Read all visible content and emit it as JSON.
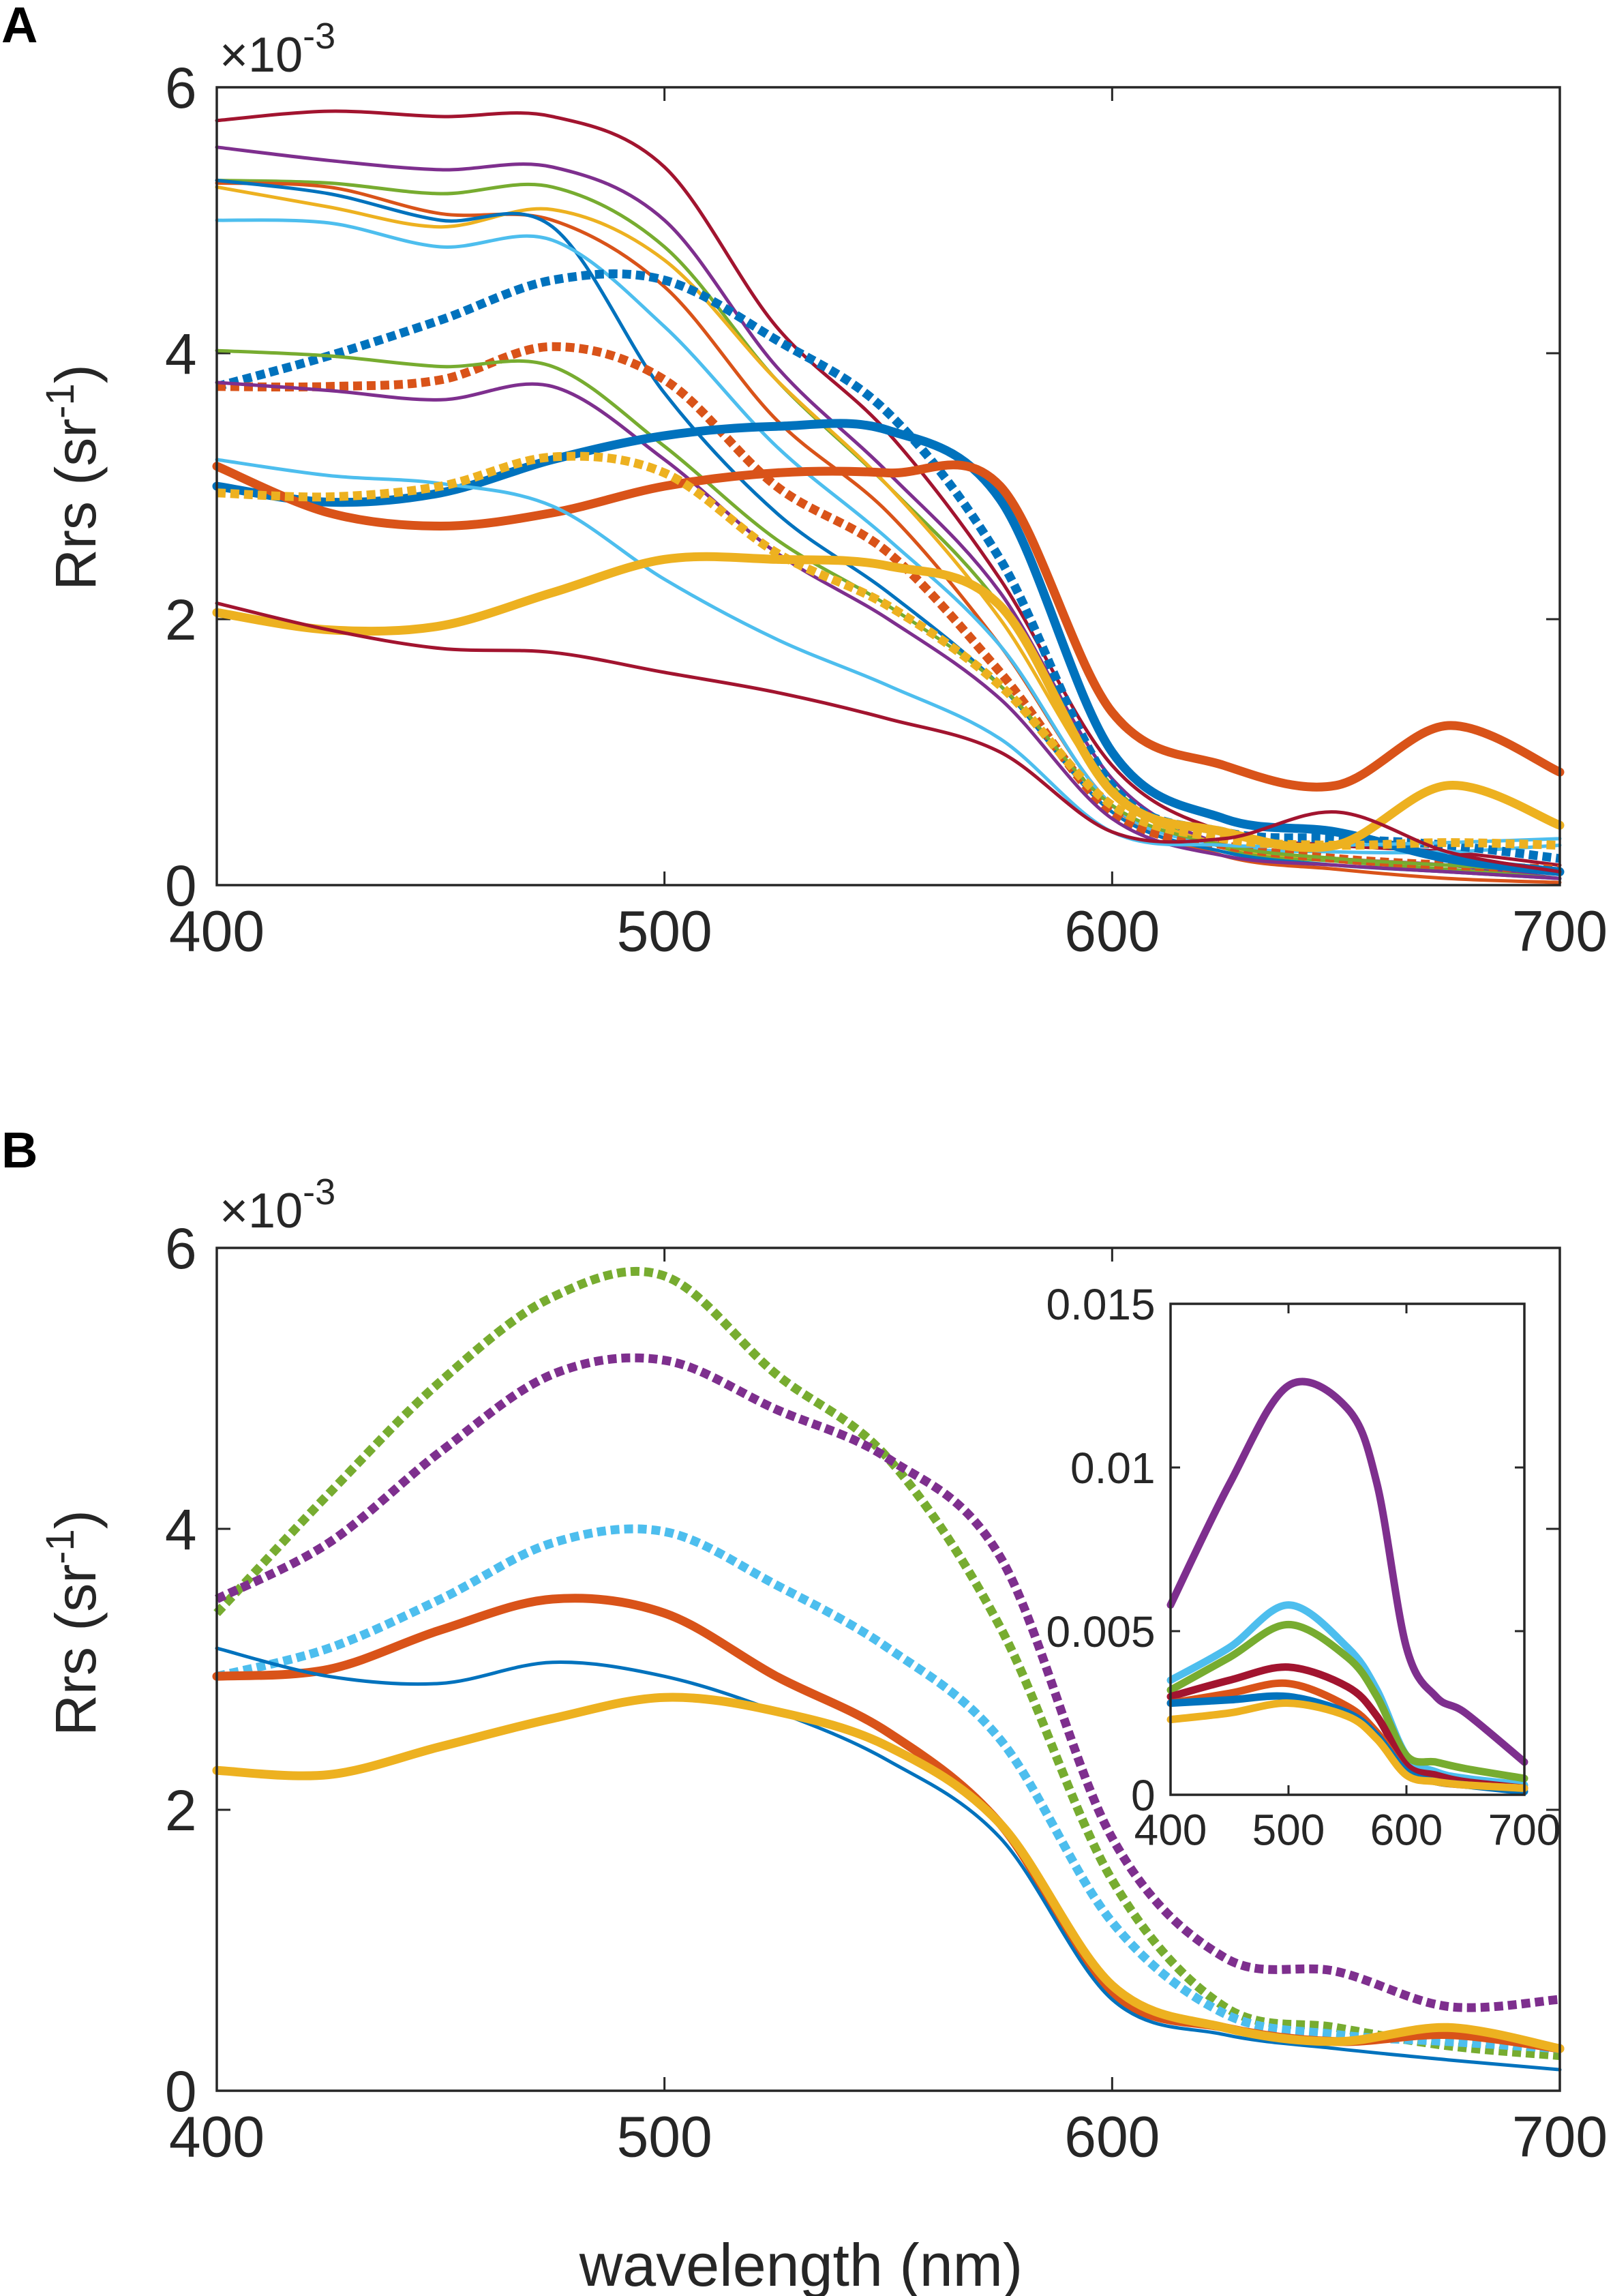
{
  "chart_data": [
    {
      "panel": "A",
      "type": "line",
      "xlabel": "",
      "ylabel": "Rrs (sr⁻¹)",
      "ylabel_main": "Rrs (sr",
      "ylabel_sup": "-1",
      "ylabel_close": ")",
      "exponent_prefix": "×10",
      "exponent_sup": "-3",
      "xlim": [
        400,
        700
      ],
      "ylim": [
        0,
        6
      ],
      "xticks": [
        "400",
        "500",
        "600",
        "700"
      ],
      "yticks": [
        "0",
        "2",
        "4",
        "6"
      ],
      "x": [
        400,
        425,
        450,
        475,
        500,
        525,
        550,
        575,
        600,
        625,
        650,
        675,
        700
      ],
      "series": [
        {
          "name": "a1-darkred-thin",
          "color": "#A2142F",
          "style": "solid",
          "width": "thin",
          "values": [
            5.75,
            5.82,
            5.78,
            5.78,
            5.4,
            4.2,
            3.4,
            2.3,
            0.9,
            0.4,
            0.3,
            0.25,
            0.15
          ]
        },
        {
          "name": "a2-purple-thin",
          "color": "#7E2F8E",
          "style": "solid",
          "width": "thin",
          "values": [
            5.55,
            5.45,
            5.38,
            5.4,
            5.0,
            3.9,
            3.1,
            2.2,
            0.8,
            0.3,
            0.2,
            0.15,
            0.05
          ]
        },
        {
          "name": "a3-green-thin",
          "color": "#77AC30",
          "style": "solid",
          "width": "thin",
          "values": [
            5.3,
            5.28,
            5.2,
            5.25,
            4.8,
            3.8,
            3.0,
            2.1,
            0.75,
            0.28,
            0.18,
            0.12,
            0.05
          ]
        },
        {
          "name": "a4-orange-thin",
          "color": "#D95319",
          "style": "solid",
          "width": "thin",
          "values": [
            5.28,
            5.25,
            5.05,
            5.0,
            4.5,
            3.5,
            2.8,
            1.8,
            0.6,
            0.22,
            0.12,
            0.05,
            0.02
          ]
        },
        {
          "name": "a5-yellow-thin",
          "color": "#EDB120",
          "style": "solid",
          "width": "thin",
          "values": [
            5.25,
            5.1,
            4.95,
            5.08,
            4.7,
            3.8,
            3.0,
            2.0,
            0.7,
            0.3,
            0.2,
            0.15,
            0.1
          ]
        },
        {
          "name": "a6-blue-thin",
          "color": "#0072BD",
          "style": "solid",
          "width": "thin",
          "values": [
            5.3,
            5.2,
            5.0,
            4.95,
            3.7,
            2.8,
            2.2,
            1.5,
            0.55,
            0.25,
            0.15,
            0.1,
            0.05
          ]
        },
        {
          "name": "a7-lightblue-thin",
          "color": "#4DBEEE",
          "style": "solid",
          "width": "thin",
          "values": [
            5.0,
            4.98,
            4.8,
            4.85,
            4.2,
            3.3,
            2.6,
            1.8,
            0.6,
            0.3,
            0.25,
            0.25,
            0.3
          ]
        },
        {
          "name": "a8-blue-dotted",
          "color": "#0072BD",
          "style": "dotted",
          "width": "thick",
          "values": [
            3.75,
            3.98,
            4.25,
            4.55,
            4.55,
            4.1,
            3.55,
            2.45,
            0.75,
            0.4,
            0.35,
            0.3,
            0.2
          ]
        },
        {
          "name": "a9-orange-dotted",
          "color": "#D95319",
          "style": "dotted",
          "width": "thick",
          "values": [
            3.75,
            3.75,
            3.8,
            4.05,
            3.8,
            3.0,
            2.5,
            1.6,
            0.55,
            0.3,
            0.2,
            0.15,
            0.12
          ]
        },
        {
          "name": "a10-green-thin-low",
          "color": "#77AC30",
          "style": "solid",
          "width": "thin",
          "values": [
            4.02,
            3.98,
            3.9,
            3.9,
            3.3,
            2.6,
            2.1,
            1.5,
            0.6,
            0.3,
            0.2,
            0.15,
            0.1
          ]
        },
        {
          "name": "a11-purple-thin-low",
          "color": "#7E2F8E",
          "style": "solid",
          "width": "thin",
          "values": [
            3.78,
            3.72,
            3.65,
            3.75,
            3.2,
            2.5,
            2.0,
            1.4,
            0.5,
            0.22,
            0.15,
            0.1,
            0.05
          ]
        },
        {
          "name": "a12-blue-thick",
          "color": "#0072BD",
          "style": "solid",
          "width": "thick",
          "values": [
            3.0,
            2.88,
            2.95,
            3.2,
            3.38,
            3.45,
            3.42,
            2.9,
            1.0,
            0.5,
            0.4,
            0.2,
            0.1
          ]
        },
        {
          "name": "a13-orange-thick",
          "color": "#D95319",
          "style": "solid",
          "width": "thick",
          "values": [
            3.15,
            2.8,
            2.7,
            2.8,
            3.0,
            3.1,
            3.1,
            3.0,
            1.3,
            0.9,
            0.75,
            1.2,
            0.85
          ]
        },
        {
          "name": "a14-lightblue-thin-low",
          "color": "#4DBEEE",
          "style": "solid",
          "width": "thin",
          "values": [
            3.2,
            3.08,
            3.02,
            2.85,
            2.3,
            1.85,
            1.5,
            1.1,
            0.4,
            0.3,
            0.3,
            0.32,
            0.35
          ]
        },
        {
          "name": "a15-yellow-dotted",
          "color": "#EDB120",
          "style": "dotted",
          "width": "thick",
          "values": [
            2.95,
            2.92,
            3.0,
            3.22,
            3.1,
            2.5,
            2.1,
            1.5,
            0.6,
            0.35,
            0.3,
            0.32,
            0.3
          ]
        },
        {
          "name": "a16-yellow-thick",
          "color": "#EDB120",
          "style": "solid",
          "width": "thick",
          "values": [
            2.05,
            1.92,
            1.95,
            2.2,
            2.45,
            2.45,
            2.4,
            2.1,
            0.7,
            0.4,
            0.3,
            0.75,
            0.45
          ]
        },
        {
          "name": "a17-darkred-thin-low",
          "color": "#A2142F",
          "style": "solid",
          "width": "thin",
          "values": [
            2.12,
            1.92,
            1.78,
            1.75,
            1.6,
            1.45,
            1.25,
            1.0,
            0.4,
            0.35,
            0.55,
            0.25,
            0.1
          ]
        }
      ]
    },
    {
      "panel": "B",
      "type": "line",
      "xlabel": "wavelength (nm)",
      "ylabel": "Rrs (sr⁻¹)",
      "ylabel_main": "Rrs (sr",
      "ylabel_sup": "-1",
      "ylabel_close": ")",
      "exponent_prefix": "×10",
      "exponent_sup": "-3",
      "xlim": [
        400,
        700
      ],
      "ylim": [
        0,
        6
      ],
      "xticks": [
        "400",
        "500",
        "600",
        "700"
      ],
      "yticks": [
        "0",
        "2",
        "4",
        "6"
      ],
      "x": [
        400,
        425,
        450,
        475,
        500,
        525,
        550,
        575,
        600,
        625,
        650,
        675,
        700
      ],
      "series": [
        {
          "name": "b1-green-dotted",
          "color": "#77AC30",
          "style": "dotted",
          "width": "thick",
          "values": [
            3.4,
            4.25,
            5.05,
            5.65,
            5.8,
            5.1,
            4.5,
            3.3,
            1.5,
            0.6,
            0.45,
            0.32,
            0.25
          ]
        },
        {
          "name": "b2-purple-dotted",
          "color": "#7E2F8E",
          "style": "dotted",
          "width": "thick",
          "values": [
            3.5,
            3.9,
            4.55,
            5.1,
            5.2,
            4.85,
            4.5,
            3.8,
            1.8,
            0.95,
            0.85,
            0.6,
            0.65
          ]
        },
        {
          "name": "b3-lightblue-dotted",
          "color": "#4DBEEE",
          "style": "dotted",
          "width": "thick",
          "values": [
            2.95,
            3.15,
            3.5,
            3.9,
            3.98,
            3.6,
            3.15,
            2.5,
            1.2,
            0.55,
            0.4,
            0.35,
            0.3
          ]
        },
        {
          "name": "b4-orange-thick",
          "color": "#D95319",
          "style": "solid",
          "width": "thick",
          "values": [
            2.95,
            3.0,
            3.28,
            3.5,
            3.4,
            2.95,
            2.55,
            1.9,
            0.7,
            0.45,
            0.35,
            0.4,
            0.3
          ]
        },
        {
          "name": "b5-blue-thin",
          "color": "#0072BD",
          "style": "solid",
          "width": "thin",
          "values": [
            3.15,
            2.95,
            2.9,
            3.05,
            2.95,
            2.7,
            2.35,
            1.8,
            0.65,
            0.4,
            0.3,
            0.22,
            0.15
          ]
        },
        {
          "name": "b6-yellow-thick",
          "color": "#EDB120",
          "style": "solid",
          "width": "thick",
          "values": [
            2.28,
            2.25,
            2.45,
            2.65,
            2.8,
            2.7,
            2.45,
            1.9,
            0.75,
            0.45,
            0.35,
            0.45,
            0.3
          ]
        }
      ],
      "inset": {
        "type": "line",
        "xlim": [
          400,
          700
        ],
        "ylim": [
          0,
          0.015
        ],
        "xticks": [
          "400",
          "500",
          "600",
          "700"
        ],
        "yticks": [
          "0",
          "0.005",
          "0.01",
          "0.015"
        ],
        "x": [
          400,
          450,
          500,
          550,
          575,
          600,
          625,
          650,
          700
        ],
        "series": [
          {
            "name": "i1-purple",
            "color": "#7E2F8E",
            "width": "thick",
            "values": [
              0.0058,
              0.0095,
              0.0125,
              0.0118,
              0.0095,
              0.0045,
              0.003,
              0.0025,
              0.001
            ]
          },
          {
            "name": "i2-lightblue",
            "color": "#4DBEEE",
            "width": "thick",
            "values": [
              0.0035,
              0.0045,
              0.0058,
              0.0045,
              0.0032,
              0.0012,
              0.0007,
              0.0005,
              0.0003
            ]
          },
          {
            "name": "i3-green",
            "color": "#77AC30",
            "width": "thick",
            "values": [
              0.0032,
              0.0042,
              0.0052,
              0.0042,
              0.003,
              0.0012,
              0.001,
              0.0008,
              0.0005
            ]
          },
          {
            "name": "i4-darkred",
            "color": "#A2142F",
            "width": "thick",
            "values": [
              0.003,
              0.0035,
              0.0039,
              0.0033,
              0.0024,
              0.0009,
              0.0006,
              0.0004,
              0.0002
            ]
          },
          {
            "name": "i5-orange",
            "color": "#D95319",
            "width": "thick",
            "values": [
              0.0028,
              0.0031,
              0.0034,
              0.0027,
              0.0019,
              0.0007,
              0.0004,
              0.0003,
              0.0002
            ]
          },
          {
            "name": "i6-blue",
            "color": "#0072BD",
            "width": "thick",
            "values": [
              0.0028,
              0.0029,
              0.003,
              0.0025,
              0.0018,
              0.0007,
              0.0004,
              0.0003,
              0.0001
            ]
          },
          {
            "name": "i7-yellow",
            "color": "#EDB120",
            "width": "thick",
            "values": [
              0.0023,
              0.0025,
              0.0028,
              0.0024,
              0.0017,
              0.0006,
              0.0004,
              0.0003,
              0.0002
            ]
          }
        ]
      }
    }
  ]
}
